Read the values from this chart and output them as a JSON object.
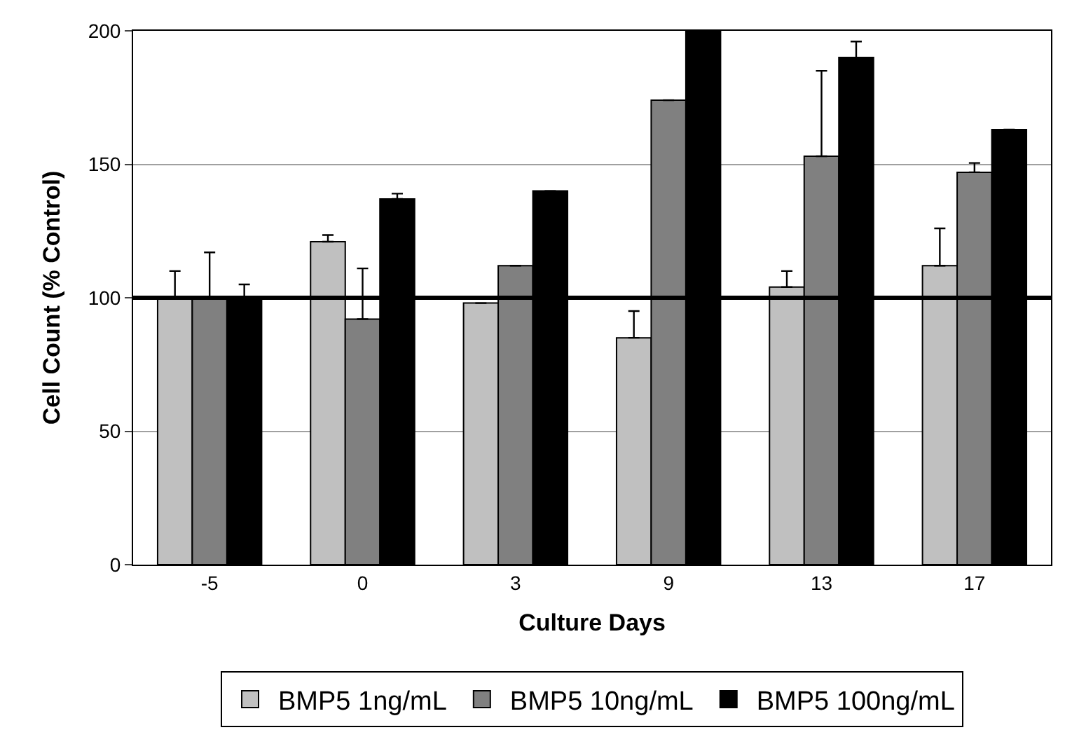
{
  "chart_data": {
    "type": "bar",
    "xlabel": "Culture Days",
    "ylabel": "Cell Count (% Control)",
    "categories": [
      "-5",
      "0",
      "3",
      "9",
      "13",
      "17"
    ],
    "series": [
      {
        "name": "BMP5 1ng/mL",
        "color": "#c0c0c0",
        "values": [
          100,
          121,
          98,
          85,
          104,
          112
        ],
        "errors": [
          [
            100,
            110
          ],
          [
            121,
            123.5
          ],
          null,
          [
            85,
            95
          ],
          [
            104,
            110
          ],
          [
            112,
            126
          ]
        ]
      },
      {
        "name": "BMP5 10ng/mL",
        "color": "#808080",
        "values": [
          100,
          92,
          112,
          174,
          153,
          147
        ],
        "errors": [
          [
            100,
            117
          ],
          [
            92,
            111
          ],
          null,
          null,
          [
            153,
            185
          ],
          [
            147,
            150.5
          ]
        ]
      },
      {
        "name": "BMP5 100ng/mL",
        "color": "#000000",
        "values": [
          100,
          137,
          140,
          200,
          190,
          163
        ],
        "errors": [
          [
            100,
            105
          ],
          [
            137,
            139
          ],
          null,
          null,
          [
            190,
            196
          ],
          null
        ]
      }
    ],
    "ylim": [
      0,
      200
    ],
    "yticks": [
      0,
      50,
      100,
      150,
      200
    ],
    "grid": "y",
    "legend": "bottom",
    "ref_lines": [
      {
        "axis": "y",
        "value": 100,
        "color": "#000000"
      }
    ]
  }
}
